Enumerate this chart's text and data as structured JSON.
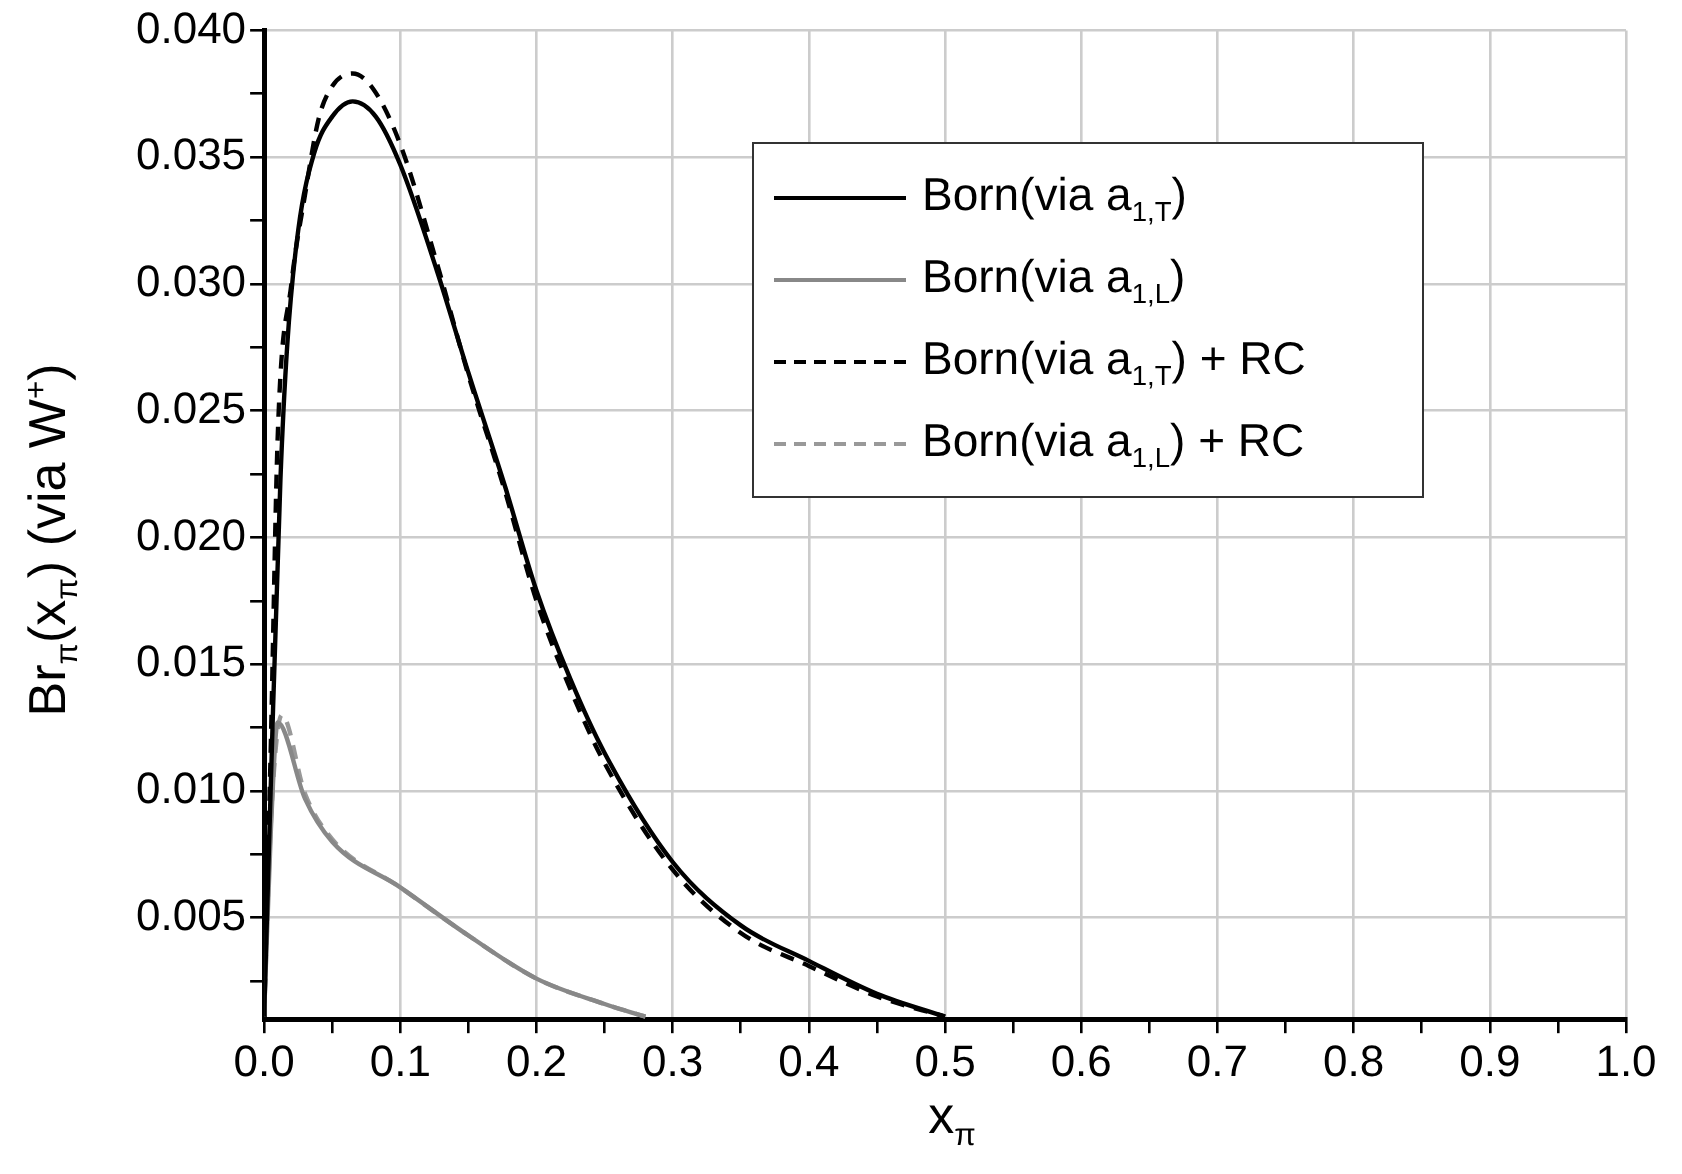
{
  "chart_data": {
    "type": "line",
    "xlabel": "x$_{π}$",
    "ylabel": "Br$_{π}$(x$_{π}$) (via W$^{+}$)",
    "xlim": [
      0,
      1
    ],
    "ylim": [
      0.001,
      0.04
    ],
    "xticks": [
      {
        "value": 0,
        "label": "0.0"
      },
      {
        "value": 0.05,
        "label": null
      },
      {
        "value": 0.1,
        "label": "0.1"
      },
      {
        "value": 0.15,
        "label": null
      },
      {
        "value": 0.2,
        "label": "0.2"
      },
      {
        "value": 0.25,
        "label": null
      },
      {
        "value": 0.3,
        "label": "0.3"
      },
      {
        "value": 0.35,
        "label": null
      },
      {
        "value": 0.4,
        "label": "0.4"
      },
      {
        "value": 0.45,
        "label": null
      },
      {
        "value": 0.5,
        "label": "0.5"
      },
      {
        "value": 0.55,
        "label": null
      },
      {
        "value": 0.6,
        "label": "0.6"
      },
      {
        "value": 0.65,
        "label": null
      },
      {
        "value": 0.7,
        "label": "0.7"
      },
      {
        "value": 0.75,
        "label": null
      },
      {
        "value": 0.8,
        "label": "0.8"
      },
      {
        "value": 0.85,
        "label": null
      },
      {
        "value": 0.9,
        "label": "0.9"
      },
      {
        "value": 0.95,
        "label": null
      },
      {
        "value": 1,
        "label": "1.0"
      }
    ],
    "yticks": [
      {
        "value": 0.0025,
        "label": null
      },
      {
        "value": 0.005,
        "label": "0.005"
      },
      {
        "value": 0.0075,
        "label": null
      },
      {
        "value": 0.01,
        "label": "0.010"
      },
      {
        "value": 0.0125,
        "label": null
      },
      {
        "value": 0.015,
        "label": "0.015"
      },
      {
        "value": 0.0175,
        "label": null
      },
      {
        "value": 0.02,
        "label": "0.020"
      },
      {
        "value": 0.0225,
        "label": null
      },
      {
        "value": 0.025,
        "label": "0.025"
      },
      {
        "value": 0.0275,
        "label": null
      },
      {
        "value": 0.03,
        "label": "0.030"
      },
      {
        "value": 0.0325,
        "label": null
      },
      {
        "value": 0.035,
        "label": "0.035"
      },
      {
        "value": 0.0375,
        "label": null
      },
      {
        "value": 0.04,
        "label": "0.040"
      }
    ],
    "grid": true,
    "legend": "top right",
    "marker": "none",
    "series": [
      {
        "name": "Born(via a$_{1,T}$)",
        "color": "#000000",
        "line_style": "solid",
        "x": [
          0,
          0.005,
          0.012,
          0.017,
          0.025,
          0.037,
          0.05,
          0.065,
          0.082,
          0.1,
          0.127,
          0.15,
          0.177,
          0.2,
          0.225,
          0.25,
          0.3,
          0.35,
          0.4,
          0.45,
          0.5
        ],
        "values": [
          0.0011,
          0.0104,
          0.0223,
          0.0276,
          0.0321,
          0.0352,
          0.0366,
          0.0372,
          0.0366,
          0.0347,
          0.0305,
          0.0265,
          0.022,
          0.0179,
          0.0144,
          0.0115,
          0.0072,
          0.0047,
          0.0033,
          0.002,
          0.0011
        ]
      },
      {
        "name": "Born(via a$_{1,L}$)",
        "color": "#888888",
        "line_style": "solid",
        "x": [
          0,
          0.005,
          0.01,
          0.03,
          0.05,
          0.1,
          0.15,
          0.2,
          0.25,
          0.28
        ],
        "values": [
          0.0011,
          0.0085,
          0.0127,
          0.0097,
          0.008,
          0.0062,
          0.0043,
          0.0026,
          0.0016,
          0.0011
        ]
      },
      {
        "name": "Born(via a$_{1,T}$) + RC",
        "color": "#000000",
        "line_style": "dashed",
        "x": [
          0,
          0.005,
          0.01,
          0.02,
          0.03,
          0.04,
          0.05,
          0.065,
          0.08,
          0.1,
          0.127,
          0.15,
          0.177,
          0.2,
          0.225,
          0.25,
          0.3,
          0.35,
          0.4,
          0.45,
          0.5
        ],
        "values": [
          0.0011,
          0.012,
          0.024,
          0.03,
          0.0335,
          0.0365,
          0.0378,
          0.0383,
          0.0377,
          0.0355,
          0.0308,
          0.0264,
          0.0218,
          0.0175,
          0.014,
          0.0111,
          0.0069,
          0.0044,
          0.0031,
          0.0019,
          0.0011
        ]
      },
      {
        "name": "Born(via a$_{1,L}$) + RC",
        "color": "#999999",
        "line_style": "dashed",
        "x": [
          0,
          0.005,
          0.013,
          0.03,
          0.05,
          0.1,
          0.15,
          0.2,
          0.25,
          0.28
        ],
        "values": [
          0.0011,
          0.0088,
          0.013,
          0.0099,
          0.0081,
          0.0062,
          0.0043,
          0.0026,
          0.0016,
          0.0011
        ]
      }
    ]
  }
}
